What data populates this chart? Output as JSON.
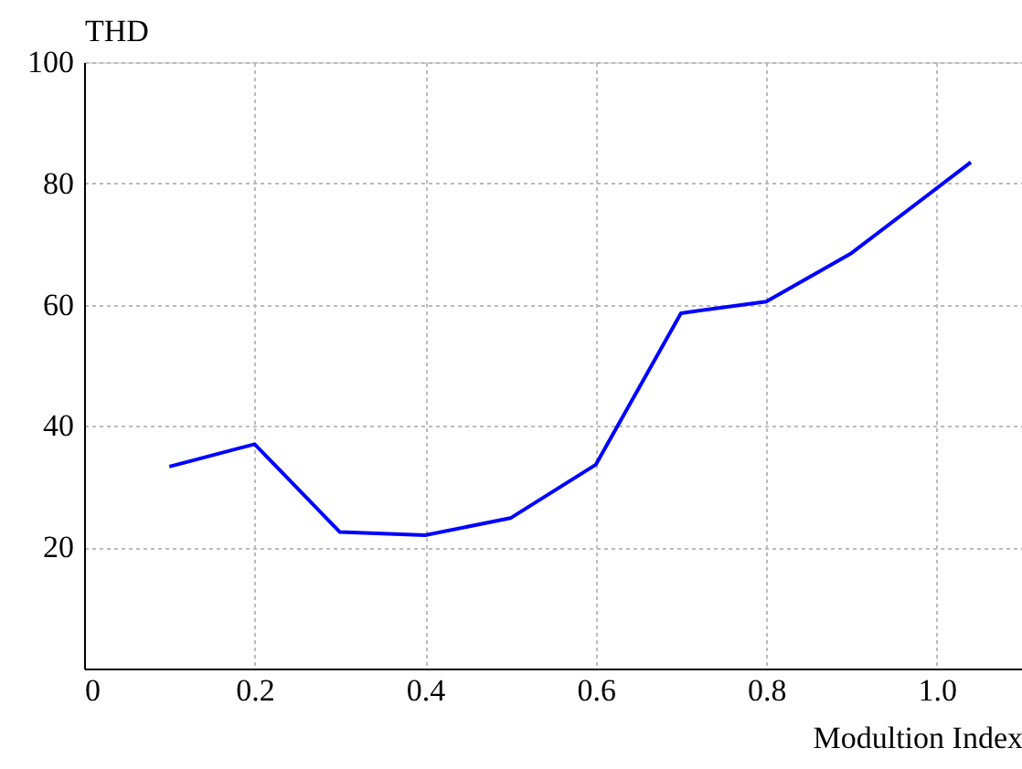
{
  "chart_data": {
    "type": "line",
    "xlabel": "Modultion Index",
    "ylabel": "THD",
    "x": [
      0.1,
      0.2,
      0.3,
      0.4,
      0.5,
      0.6,
      0.7,
      0.8,
      0.9,
      1.04
    ],
    "series": [
      {
        "color": "#0000ff",
        "values": [
          33.3,
          37,
          22.5,
          22,
          24.8,
          33.6,
          58.6,
          60.5,
          68.5,
          83.5
        ]
      }
    ],
    "xlim": [
      0,
      1.1
    ],
    "xticks": [
      0,
      0.2,
      0.4,
      0.6,
      0.8,
      {
        "value": 1.0,
        "label": "1.0"
      }
    ],
    "ylim": [
      0,
      100
    ],
    "yticks": [
      20,
      40,
      60,
      80,
      100
    ],
    "grid": true,
    "marker": "none",
    "line_style": "solid",
    "legend": false
  }
}
